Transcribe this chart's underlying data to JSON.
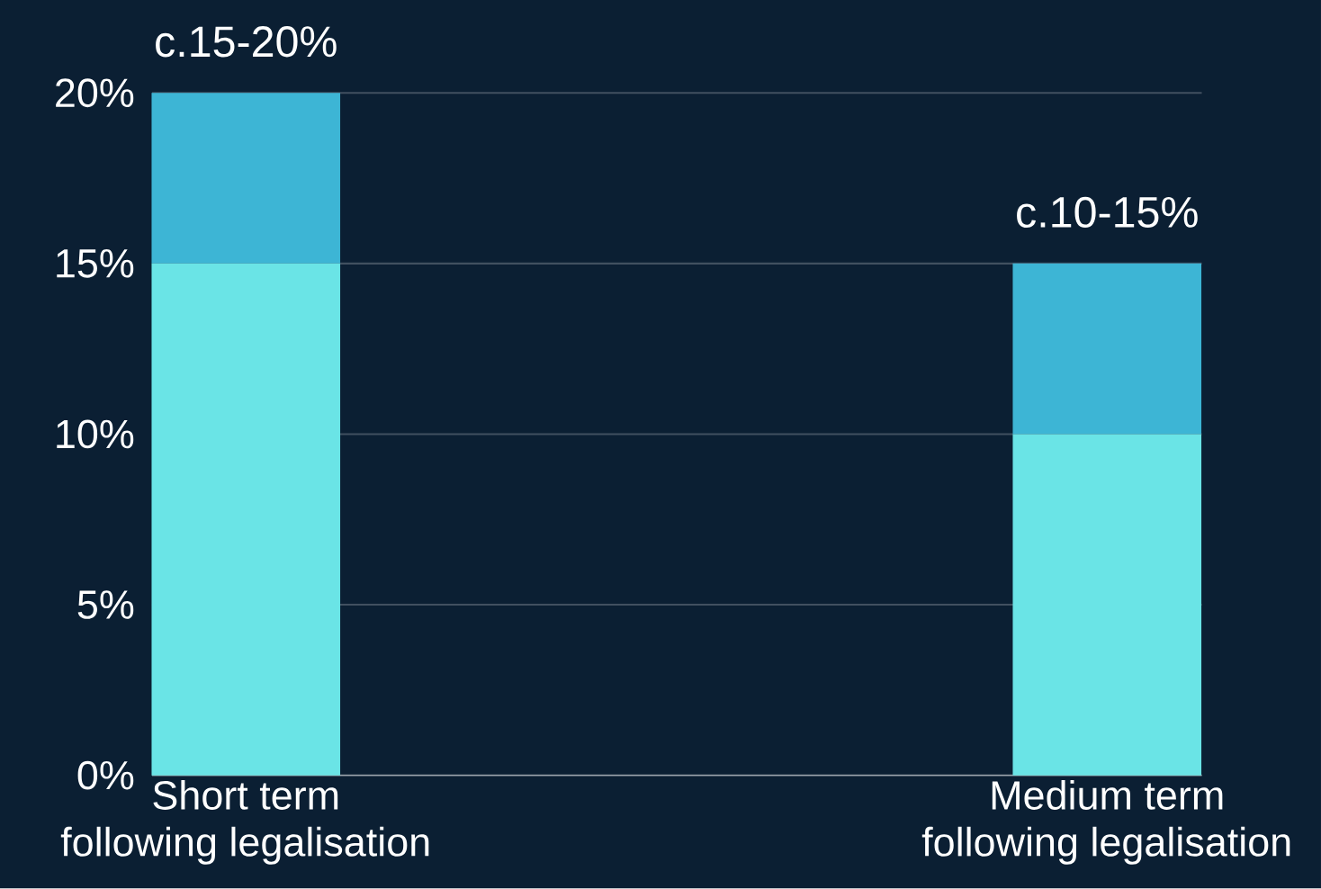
{
  "chart_data": {
    "type": "bar",
    "stacked": true,
    "categories": [
      "Short term following legalisation",
      "Medium term following legalisation"
    ],
    "series": [
      {
        "color": "#6ae4e6",
        "values": [
          15,
          10
        ]
      },
      {
        "color": "#3db5d5",
        "values": [
          5,
          5
        ]
      }
    ],
    "totals": [
      "c.15-20%",
      "c.10-15%"
    ],
    "ylim": [
      0,
      20
    ],
    "yticks": [
      {
        "value": 0,
        "label": "0%"
      },
      {
        "value": 5,
        "label": "5%"
      },
      {
        "value": 10,
        "label": "10%"
      },
      {
        "value": 15,
        "label": "15%"
      },
      {
        "value": 20,
        "label": "20%"
      }
    ],
    "grid": "y"
  }
}
